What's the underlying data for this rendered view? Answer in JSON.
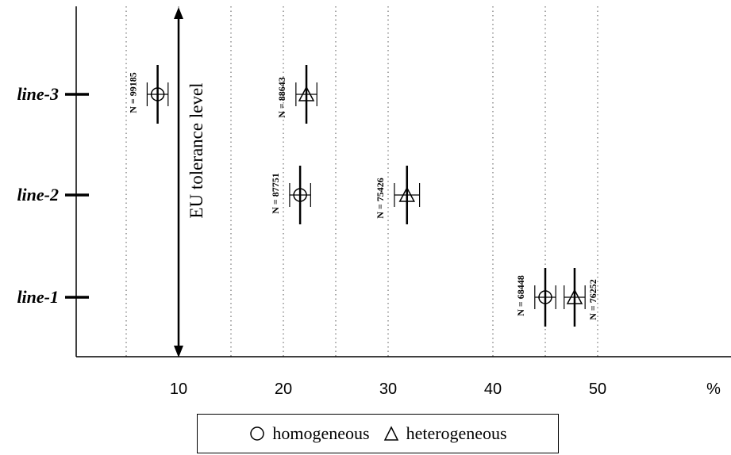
{
  "chart_data": {
    "type": "scatter",
    "title": "",
    "xlabel": "",
    "ylabel": "",
    "x_unit": "%",
    "xlim": [
      0,
      63
    ],
    "x_ticks": [
      10,
      20,
      30,
      40,
      50
    ],
    "x_gridlines": [
      5,
      10,
      15,
      20,
      25,
      30,
      40,
      45,
      50
    ],
    "grid": "vertical dotted",
    "categories": [
      "line-3",
      "line-2",
      "line-1"
    ],
    "annotation": {
      "text": "EU tolerance level",
      "x": 10,
      "style": "double-headed vertical arrow"
    },
    "series": [
      {
        "name": "homogeneous",
        "marker": "circle",
        "points": [
          {
            "category": "line-3",
            "x": 8.0,
            "err_low": 7.0,
            "err_high": 9.0,
            "n_label": "N = 99185"
          },
          {
            "category": "line-2",
            "x": 21.6,
            "err_low": 20.6,
            "err_high": 22.6,
            "n_label": "N = 87751"
          },
          {
            "category": "line-1",
            "x": 45.0,
            "err_low": 44.0,
            "err_high": 46.0,
            "n_label": "N = 68448"
          }
        ]
      },
      {
        "name": "heterogeneous",
        "marker": "triangle",
        "points": [
          {
            "category": "line-3",
            "x": 22.2,
            "err_low": 21.2,
            "err_high": 23.2,
            "n_label": "N = 88643"
          },
          {
            "category": "line-2",
            "x": 31.8,
            "err_low": 30.6,
            "err_high": 33.0,
            "n_label": "N = 75426"
          },
          {
            "category": "line-1",
            "x": 47.8,
            "err_low": 46.8,
            "err_high": 48.8,
            "n_label": "N = 76252"
          }
        ]
      }
    ],
    "legend": {
      "placement": "bottom-center",
      "entries": [
        {
          "symbol": "circle",
          "label": "homogeneous"
        },
        {
          "symbol": "triangle",
          "label": "heterogeneous"
        }
      ]
    }
  }
}
